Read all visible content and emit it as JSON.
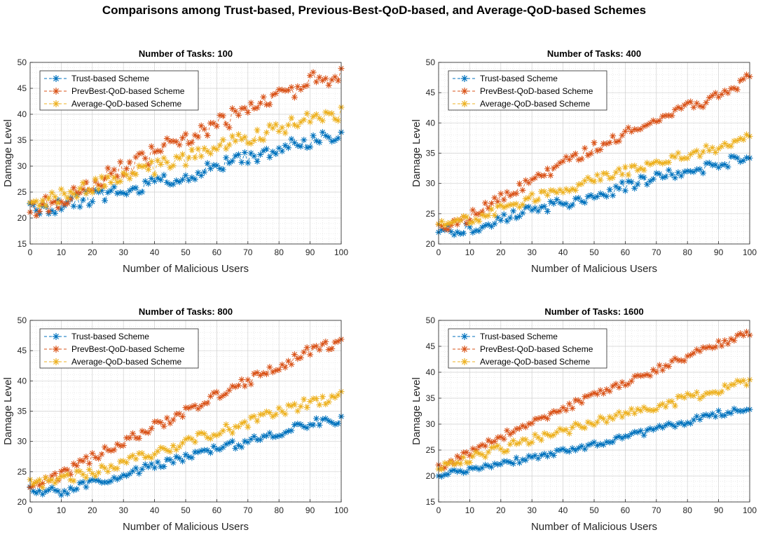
{
  "figure": {
    "title": "Comparisons among Trust-based, Previous-Best-QoD-based, and Average-QoD-based Schemes"
  },
  "colors": {
    "trust": "#0072BD",
    "prevbest": "#D95319",
    "average": "#EDB120"
  },
  "chart_data": [
    {
      "type": "line",
      "title": "Number of Tasks: 100",
      "xlabel": "Number of Malicious Users",
      "ylabel": "Damage Level",
      "xlim": [
        0,
        100
      ],
      "ylim": [
        15,
        50
      ],
      "xticks": [
        0,
        10,
        20,
        30,
        40,
        50,
        60,
        70,
        80,
        90,
        100
      ],
      "yticks": [
        15,
        20,
        25,
        30,
        35,
        40,
        45,
        50
      ],
      "grid": true,
      "legend_position": "top-left",
      "marker": "asterisk",
      "x": {
        "start": 0,
        "end": 100,
        "step": 1
      },
      "series": [
        {
          "name": "Trust-based Scheme",
          "trend": [
            [
              0,
              21.5
            ],
            [
              10,
              22.5
            ],
            [
              30,
              25.5
            ],
            [
              50,
              28.0
            ],
            [
              70,
              31.5
            ],
            [
              90,
              35.0
            ],
            [
              100,
              36.0
            ]
          ],
          "noise": 1.4,
          "seed": 11
        },
        {
          "name": "PrevBest-QoD-based Scheme",
          "trend": [
            [
              0,
              21.5
            ],
            [
              10,
              24.0
            ],
            [
              30,
              29.5
            ],
            [
              50,
              35.5
            ],
            [
              70,
              40.5
            ],
            [
              90,
              46.5
            ],
            [
              100,
              48.0
            ]
          ],
          "noise": 1.9,
          "seed": 12
        },
        {
          "name": "Average-QoD-based Scheme",
          "trend": [
            [
              0,
              22.0
            ],
            [
              10,
              24.5
            ],
            [
              30,
              28.0
            ],
            [
              50,
              31.5
            ],
            [
              70,
              35.5
            ],
            [
              90,
              39.0
            ],
            [
              100,
              40.0
            ]
          ],
          "noise": 1.4,
          "seed": 13
        }
      ]
    },
    {
      "type": "line",
      "title": "Number of Tasks: 400",
      "xlabel": "Number of Malicious Users",
      "ylabel": "Damage Level",
      "xlim": [
        0,
        100
      ],
      "ylim": [
        20,
        50
      ],
      "xticks": [
        0,
        10,
        20,
        30,
        40,
        50,
        60,
        70,
        80,
        90,
        100
      ],
      "yticks": [
        20,
        25,
        30,
        35,
        40,
        45,
        50
      ],
      "grid": true,
      "legend_position": "top-left",
      "marker": "asterisk",
      "x": {
        "start": 0,
        "end": 100,
        "step": 1
      },
      "series": [
        {
          "name": "Trust-based Scheme",
          "trend": [
            [
              0,
              22.0
            ],
            [
              10,
              22.5
            ],
            [
              30,
              25.5
            ],
            [
              50,
              28.0
            ],
            [
              70,
              31.0
            ],
            [
              90,
              33.0
            ],
            [
              100,
              35.0
            ]
          ],
          "noise": 0.9,
          "seed": 21
        },
        {
          "name": "PrevBest-QoD-based Scheme",
          "trend": [
            [
              0,
              22.5
            ],
            [
              10,
              24.5
            ],
            [
              30,
              30.5
            ],
            [
              50,
              36.0
            ],
            [
              70,
              40.5
            ],
            [
              90,
              44.5
            ],
            [
              100,
              47.5
            ]
          ],
          "noise": 0.9,
          "seed": 22
        },
        {
          "name": "Average-QoD-based Scheme",
          "trend": [
            [
              0,
              23.5
            ],
            [
              10,
              24.0
            ],
            [
              30,
              27.5
            ],
            [
              50,
              30.5
            ],
            [
              70,
              33.5
            ],
            [
              90,
              36.0
            ],
            [
              100,
              37.5
            ]
          ],
          "noise": 0.8,
          "seed": 23
        }
      ]
    },
    {
      "type": "line",
      "title": "Number of Tasks: 800",
      "xlabel": "Number of Malicious Users",
      "ylabel": "Damage Level",
      "xlim": [
        0,
        100
      ],
      "ylim": [
        20,
        50
      ],
      "xticks": [
        0,
        10,
        20,
        30,
        40,
        50,
        60,
        70,
        80,
        90,
        100
      ],
      "yticks": [
        20,
        25,
        30,
        35,
        40,
        45,
        50
      ],
      "grid": true,
      "legend_position": "top-left",
      "marker": "asterisk",
      "x": {
        "start": 0,
        "end": 100,
        "step": 1
      },
      "series": [
        {
          "name": "Trust-based Scheme",
          "trend": [
            [
              0,
              21.8
            ],
            [
              10,
              21.8
            ],
            [
              30,
              24.5
            ],
            [
              50,
              27.5
            ],
            [
              70,
              30.0
            ],
            [
              90,
              33.0
            ],
            [
              100,
              33.5
            ]
          ],
          "noise": 0.7,
          "seed": 31
        },
        {
          "name": "PrevBest-QoD-based Scheme",
          "trend": [
            [
              0,
              22.5
            ],
            [
              10,
              24.5
            ],
            [
              30,
              30.0
            ],
            [
              50,
              35.0
            ],
            [
              70,
              40.0
            ],
            [
              90,
              45.0
            ],
            [
              100,
              46.5
            ]
          ],
          "noise": 0.8,
          "seed": 32
        },
        {
          "name": "Average-QoD-based Scheme",
          "trend": [
            [
              0,
              23.0
            ],
            [
              10,
              23.5
            ],
            [
              30,
              26.5
            ],
            [
              50,
              30.0
            ],
            [
              70,
              33.0
            ],
            [
              90,
              36.5
            ],
            [
              100,
              37.5
            ]
          ],
          "noise": 0.9,
          "seed": 33
        }
      ]
    },
    {
      "type": "line",
      "title": "Number of Tasks: 1600",
      "xlabel": "Number of Malicious Users",
      "ylabel": "Damage Level",
      "xlim": [
        0,
        100
      ],
      "ylim": [
        15,
        50
      ],
      "xticks": [
        0,
        10,
        20,
        30,
        40,
        50,
        60,
        70,
        80,
        90,
        100
      ],
      "yticks": [
        15,
        20,
        25,
        30,
        35,
        40,
        45,
        50
      ],
      "grid": true,
      "legend_position": "top-left",
      "marker": "asterisk",
      "x": {
        "start": 0,
        "end": 100,
        "step": 1
      },
      "series": [
        {
          "name": "Trust-based Scheme",
          "trend": [
            [
              0,
              20.0
            ],
            [
              10,
              21.5
            ],
            [
              30,
              23.5
            ],
            [
              50,
              26.0
            ],
            [
              70,
              29.0
            ],
            [
              90,
              32.0
            ],
            [
              100,
              33.0
            ]
          ],
          "noise": 0.6,
          "seed": 41
        },
        {
          "name": "PrevBest-QoD-based Scheme",
          "trend": [
            [
              0,
              21.5
            ],
            [
              10,
              24.5
            ],
            [
              30,
              30.5
            ],
            [
              50,
              35.5
            ],
            [
              70,
              40.5
            ],
            [
              90,
              45.5
            ],
            [
              100,
              47.5
            ]
          ],
          "noise": 0.7,
          "seed": 42
        },
        {
          "name": "Average-QoD-based Scheme",
          "trend": [
            [
              0,
              21.5
            ],
            [
              10,
              23.5
            ],
            [
              30,
              27.0
            ],
            [
              50,
              30.5
            ],
            [
              70,
              33.5
            ],
            [
              90,
              36.5
            ],
            [
              100,
              38.5
            ]
          ],
          "noise": 0.9,
          "seed": 43
        }
      ]
    }
  ]
}
